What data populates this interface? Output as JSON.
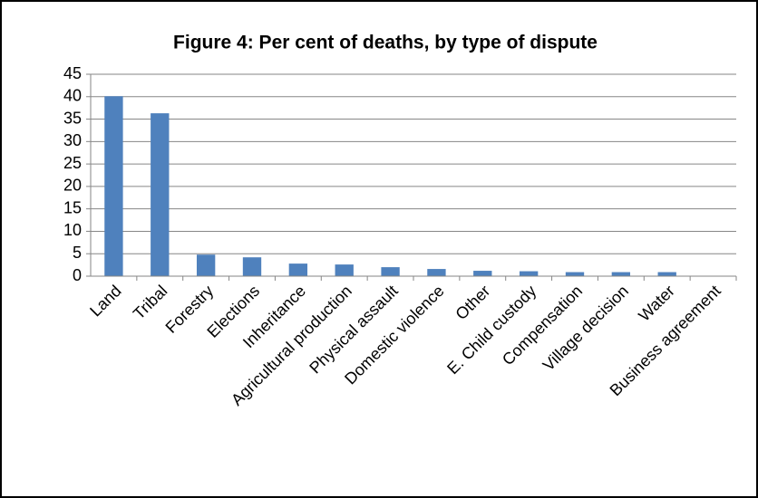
{
  "chart_data": {
    "type": "bar",
    "title": "Figure 4: Per cent of deaths, by type of dispute",
    "categories": [
      "Land",
      "Tribal",
      "Forestry",
      "Elections",
      "Inheritance",
      "Agricultural production",
      "Physical assault",
      "Domestic violence",
      "Other",
      "E. Child custody",
      "Compensation",
      "Village decision",
      "Water",
      "Business agreement"
    ],
    "values": [
      40.1,
      36.3,
      4.8,
      4.2,
      2.8,
      2.6,
      2.0,
      1.6,
      1.2,
      1.1,
      0.9,
      0.9,
      0.9,
      0
    ],
    "color": "#4f81bd",
    "ylim": [
      0,
      45
    ],
    "yticks": [
      0,
      5,
      10,
      15,
      20,
      25,
      30,
      35,
      40,
      45
    ],
    "grid": true
  }
}
